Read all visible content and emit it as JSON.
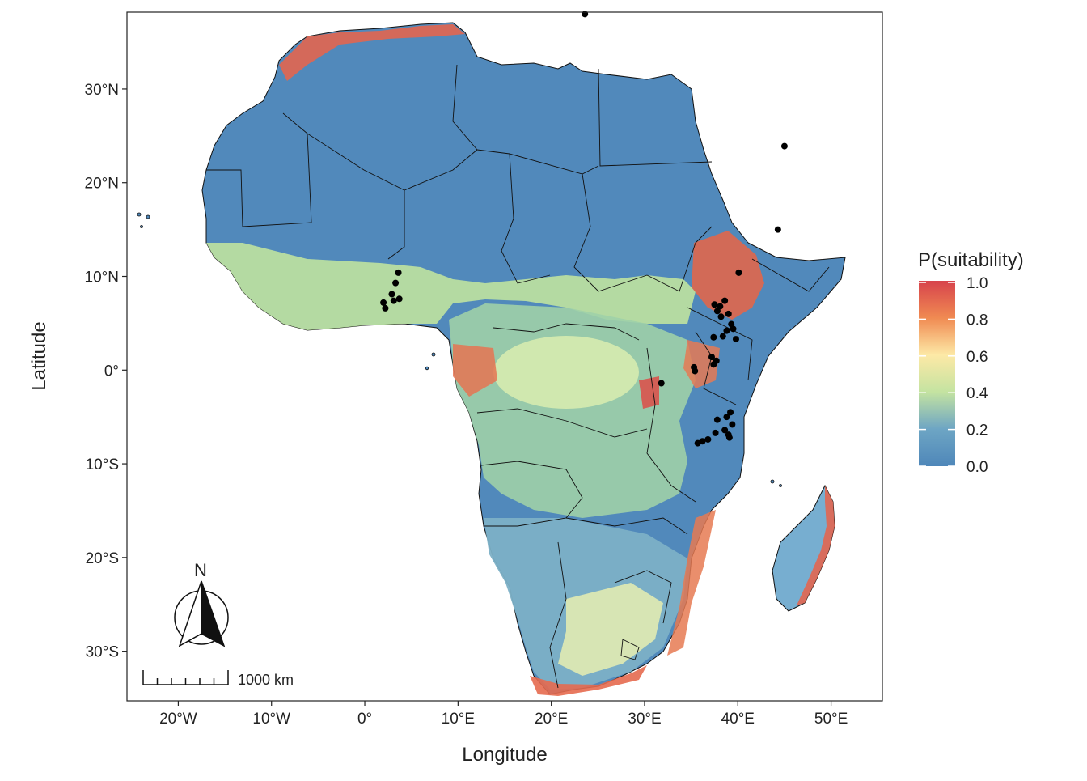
{
  "map": {
    "xlabel": "Longitude",
    "ylabel": "Latitude",
    "lon_range": [
      -25.5,
      55.5
    ],
    "lat_range": [
      -35.3,
      38.2
    ],
    "x_ticks": [
      {
        "lon": -20,
        "label": "20°W"
      },
      {
        "lon": -10,
        "label": "10°W"
      },
      {
        "lon": 0,
        "label": "0°"
      },
      {
        "lon": 10,
        "label": "10°E"
      },
      {
        "lon": 20,
        "label": "20°E"
      },
      {
        "lon": 30,
        "label": "30°E"
      },
      {
        "lon": 40,
        "label": "40°E"
      },
      {
        "lon": 50,
        "label": "50°E"
      }
    ],
    "y_ticks": [
      {
        "lat": 30,
        "label": "30°N"
      },
      {
        "lat": 20,
        "label": "20°N"
      },
      {
        "lat": 10,
        "label": "10°N"
      },
      {
        "lat": 0,
        "label": "0°"
      },
      {
        "lat": -10,
        "label": "10°S"
      },
      {
        "lat": -20,
        "label": "20°S"
      },
      {
        "lat": -30,
        "label": "30°S"
      }
    ]
  },
  "legend": {
    "title": "P(suitability)",
    "labels": [
      "1.0",
      "0.8",
      "0.6",
      "0.4",
      "0.2",
      "0.0"
    ],
    "colors": [
      "#d7434c",
      "#f08a52",
      "#fde9a6",
      "#c4e3a1",
      "#6da5c4",
      "#4f87b9"
    ]
  },
  "north_arrow": {
    "label": "N"
  },
  "scale_bar": {
    "label": "1000 km"
  },
  "occurrences": [
    {
      "lon": 3.3,
      "lat": 9.3
    },
    {
      "lon": 2.9,
      "lat": 8.1
    },
    {
      "lon": 3.7,
      "lat": 7.6
    },
    {
      "lon": 3.1,
      "lat": 7.4
    },
    {
      "lon": 2.0,
      "lat": 7.2
    },
    {
      "lon": 2.2,
      "lat": 6.6
    },
    {
      "lon": 3.6,
      "lat": 10.4
    },
    {
      "lon": 37.5,
      "lat": 7.0
    },
    {
      "lon": 38.1,
      "lat": 6.8
    },
    {
      "lon": 37.8,
      "lat": 6.3
    },
    {
      "lon": 38.6,
      "lat": 7.4
    },
    {
      "lon": 39.0,
      "lat": 6.0
    },
    {
      "lon": 38.2,
      "lat": 5.7
    },
    {
      "lon": 39.3,
      "lat": 4.9
    },
    {
      "lon": 38.8,
      "lat": 4.2
    },
    {
      "lon": 39.5,
      "lat": 4.4
    },
    {
      "lon": 38.4,
      "lat": 3.6
    },
    {
      "lon": 37.4,
      "lat": 3.5
    },
    {
      "lon": 39.8,
      "lat": 3.3
    },
    {
      "lon": 40.1,
      "lat": 10.4
    },
    {
      "lon": 37.2,
      "lat": 1.4
    },
    {
      "lon": 37.7,
      "lat": 1.0
    },
    {
      "lon": 37.4,
      "lat": 0.6
    },
    {
      "lon": 35.3,
      "lat": 0.3
    },
    {
      "lon": 35.4,
      "lat": -0.1
    },
    {
      "lon": 31.8,
      "lat": -1.4
    },
    {
      "lon": 39.2,
      "lat": -4.5
    },
    {
      "lon": 38.8,
      "lat": -5.0
    },
    {
      "lon": 37.8,
      "lat": -5.3
    },
    {
      "lon": 39.4,
      "lat": -5.8
    },
    {
      "lon": 38.6,
      "lat": -6.4
    },
    {
      "lon": 39.0,
      "lat": -6.9
    },
    {
      "lon": 37.6,
      "lat": -6.7
    },
    {
      "lon": 36.8,
      "lat": -7.4
    },
    {
      "lon": 36.2,
      "lat": -7.6
    },
    {
      "lon": 35.7,
      "lat": -7.8
    },
    {
      "lon": 39.1,
      "lat": -7.2
    },
    {
      "lon": 44.3,
      "lat": 15.0
    },
    {
      "lon": 45.0,
      "lat": 23.9
    },
    {
      "lon": 23.6,
      "lat": 38.0
    }
  ]
}
